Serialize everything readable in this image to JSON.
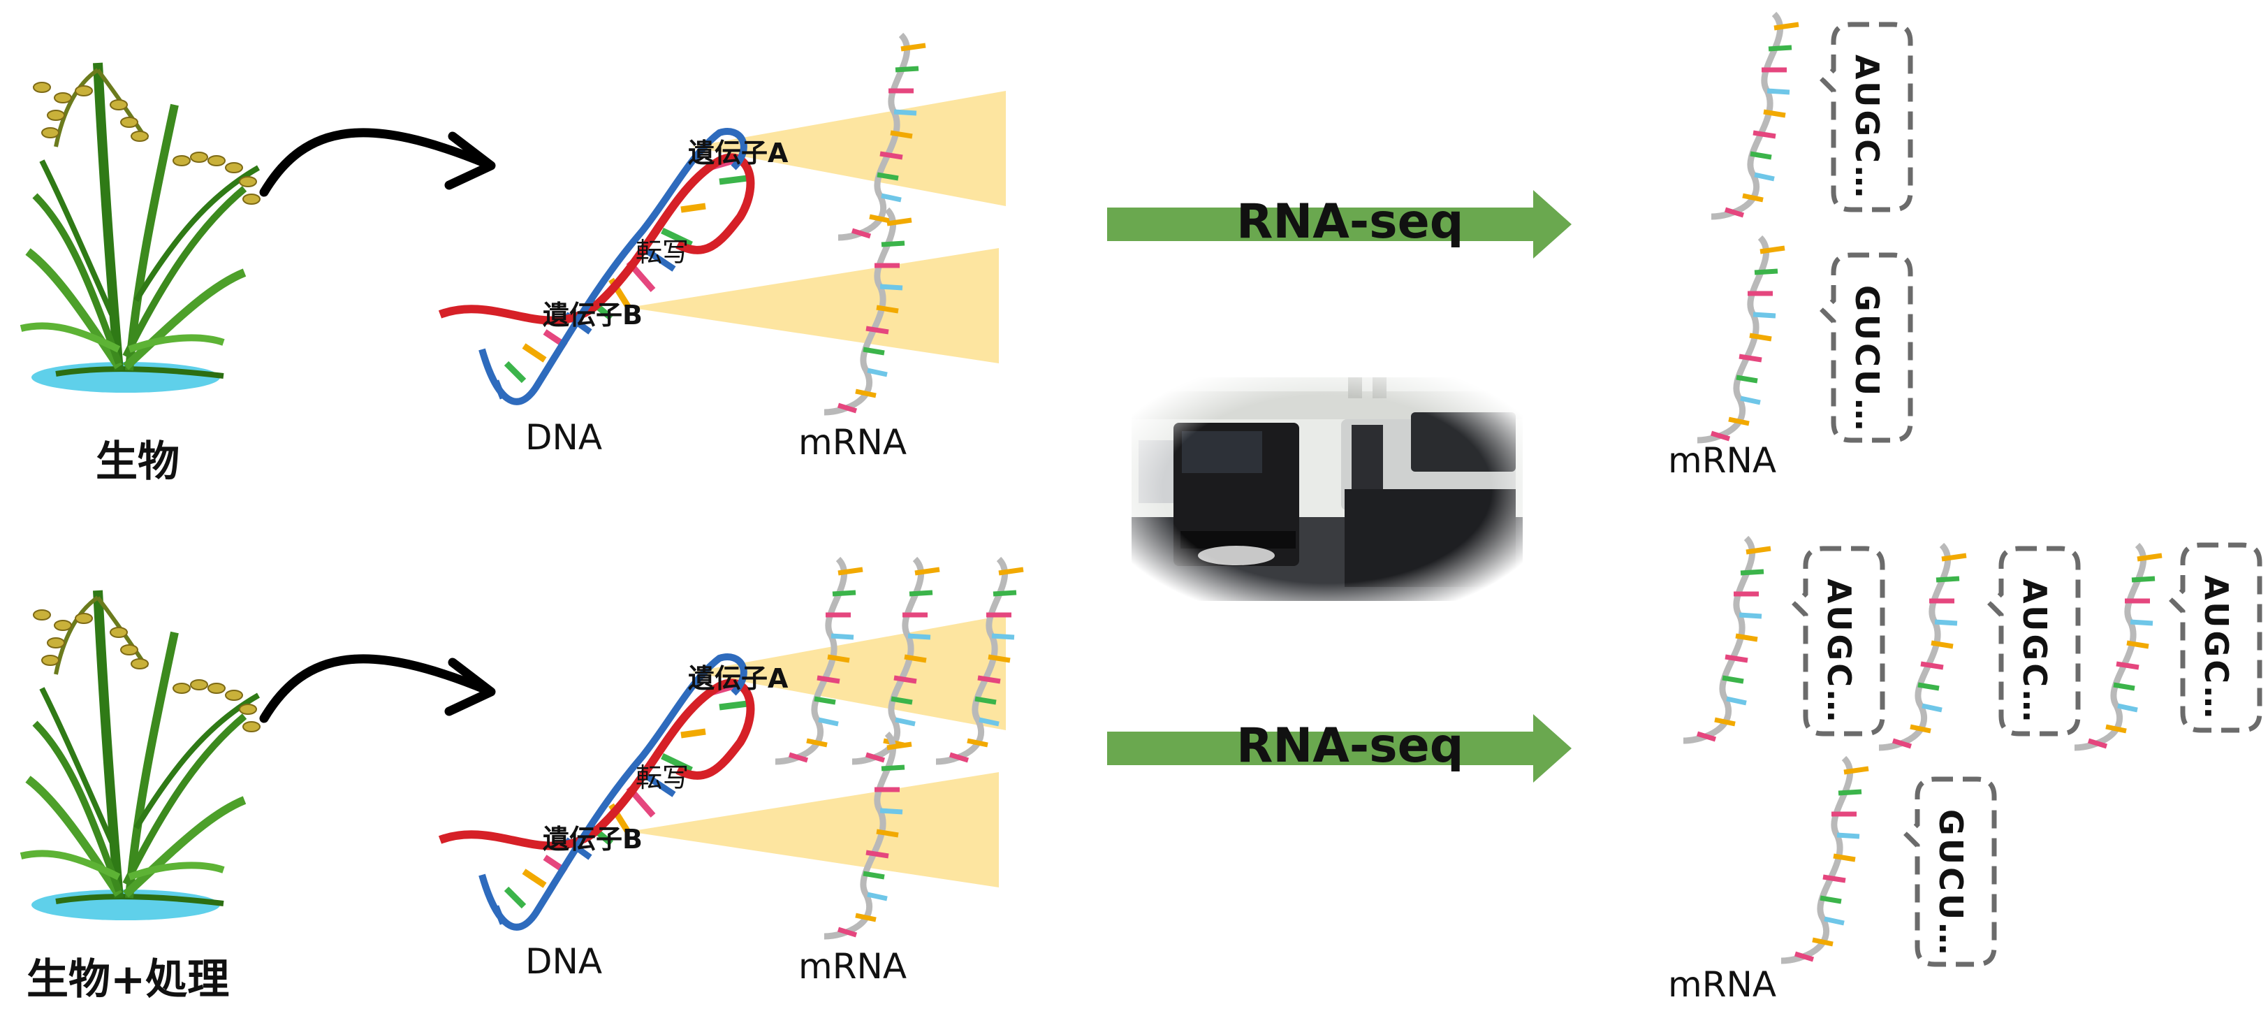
{
  "rows": [
    {
      "organism_label": "生物",
      "gene_a_label": "遺伝子A",
      "gene_b_label": "遺伝子B",
      "transcription_label": "転写",
      "dna_label": "DNA",
      "mrna_label": "mRNA",
      "rnaseq_label": "RNA-seq",
      "result_mrna_label": "mRNA",
      "reads": [
        "AUGC…",
        "GUCU…"
      ]
    },
    {
      "organism_label": "生物+処理",
      "gene_a_label": "遺伝子A",
      "gene_b_label": "遺伝子B",
      "transcription_label": "転写",
      "dna_label": "DNA",
      "mrna_label": "mRNA",
      "rnaseq_label": "RNA-seq",
      "result_mrna_label": "mRNA",
      "reads": [
        "AUGC…",
        "AUGC…",
        "AUGC…",
        "GUCU…"
      ]
    }
  ],
  "colors": {
    "arrow_green": "#6aa84f",
    "cone_yellow": "#fde5a0",
    "dna_red": "#d62027",
    "dna_blue": "#2e6bbd",
    "mrna_backbone": "#b9b9b9",
    "plant_green": "#3c8a1e",
    "water_blue": "#5fd0ea"
  },
  "icons": {
    "plant": "rice-plant-icon",
    "dna": "dna-helix-icon",
    "mrna": "mrna-strand-icon",
    "sequencer": "sequencer-photo"
  }
}
